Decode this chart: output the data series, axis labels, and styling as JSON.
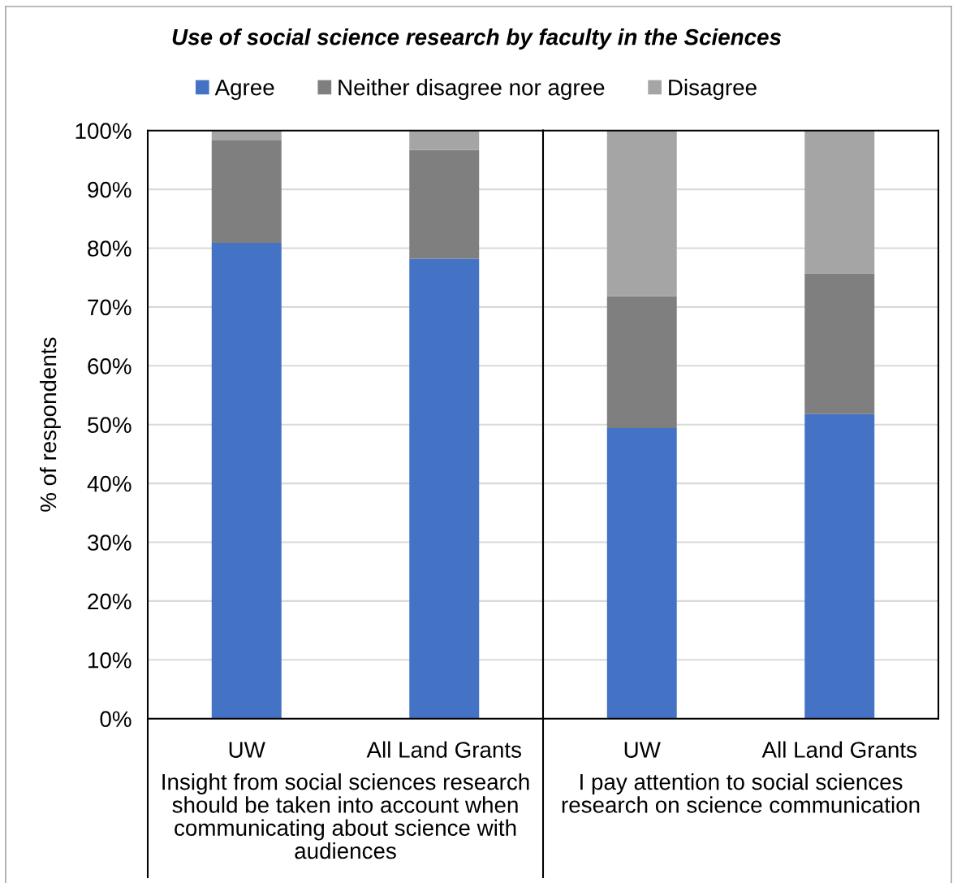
{
  "chart_data": [
    {
      "type": "bar",
      "title": "Use of social science research by faculty in the Sciences",
      "ylabel": "% of respondents",
      "xlabel": "Insight from social sciences research should be taken into account when communicating about science with audiences",
      "categories": [
        "UW",
        "All Land Grants"
      ],
      "stacked": true,
      "series": [
        {
          "name": "Agree",
          "color": "#4472c4",
          "values": [
            80.9,
            78.2
          ]
        },
        {
          "name": "Neither disagree nor agree",
          "color": "#7f7f7f",
          "values": [
            17.5,
            18.5
          ]
        },
        {
          "name": "Disagree",
          "color": "#a5a5a5",
          "values": [
            1.6,
            3.3
          ]
        }
      ],
      "ylim": [
        0,
        100
      ],
      "yticks": [
        {
          "value": 0,
          "label": "0%"
        },
        {
          "value": 10,
          "label": "10%"
        },
        {
          "value": 20,
          "label": "20%"
        },
        {
          "value": 30,
          "label": "30%"
        },
        {
          "value": 40,
          "label": "40%"
        },
        {
          "value": 50,
          "label": "50%"
        },
        {
          "value": 60,
          "label": "60%"
        },
        {
          "value": 70,
          "label": "70%"
        },
        {
          "value": 80,
          "label": "80%"
        },
        {
          "value": 90,
          "label": "90%"
        },
        {
          "value": 100,
          "label": "100%"
        }
      ],
      "grid": "y",
      "legend": "top"
    },
    {
      "type": "bar",
      "xlabel": "I pay attention to social sciences research on science communication",
      "categories": [
        "UW",
        "All Land Grants"
      ],
      "stacked": true,
      "series": [
        {
          "color": "#4472c4",
          "values": [
            49.4,
            51.8
          ]
        },
        {
          "color": "#7f7f7f",
          "values": [
            22.4,
            23.9
          ]
        },
        {
          "color": "#a5a5a5",
          "values": [
            28.2,
            24.3
          ]
        }
      ],
      "ylim": [
        0,
        100
      ],
      "yticks": [
        0,
        10,
        20,
        30,
        40,
        50,
        60,
        70,
        80,
        90,
        100
      ],
      "grid": "y",
      "tick_labels": "x"
    }
  ]
}
